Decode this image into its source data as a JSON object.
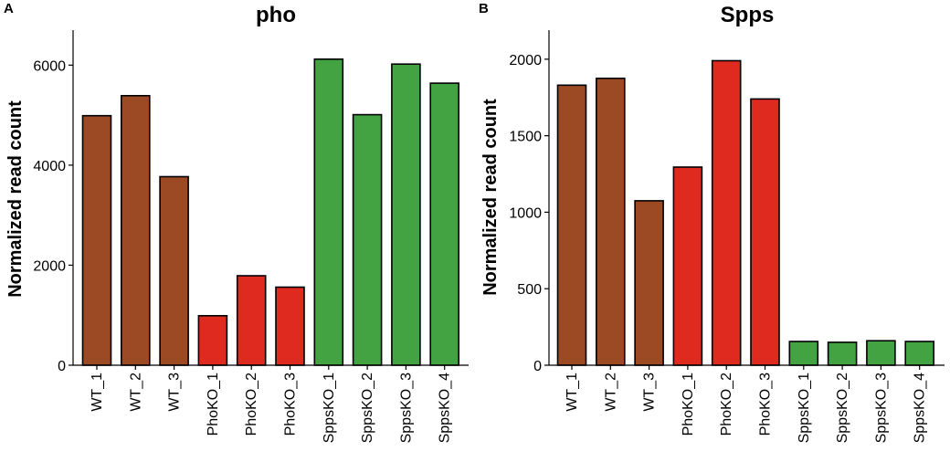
{
  "colors": {
    "WT": "#9b4a24",
    "PhoKO": "#de2a1f",
    "SppsKO": "#43a343",
    "outline": "#000000"
  },
  "chart_data": [
    {
      "panel": "A",
      "type": "bar",
      "title": "pho",
      "xlabel": "",
      "ylabel": "Normalized read count",
      "ylim": [
        0,
        6700
      ],
      "yticks": [
        0,
        2000,
        4000,
        6000
      ],
      "categories": [
        "WT_1",
        "WT_2",
        "WT_3",
        "PhoKO_1",
        "PhoKO_2",
        "PhoKO_3",
        "SppsKO_1",
        "SppsKO_2",
        "SppsKO_3",
        "SppsKO_4"
      ],
      "groups": [
        "WT",
        "WT",
        "WT",
        "PhoKO",
        "PhoKO",
        "PhoKO",
        "SppsKO",
        "SppsKO",
        "SppsKO",
        "SppsKO"
      ],
      "values": [
        4990,
        5390,
        3770,
        990,
        1790,
        1560,
        6120,
        5010,
        6020,
        5640
      ],
      "grid": false,
      "legend": "none"
    },
    {
      "panel": "B",
      "type": "bar",
      "title": "Spps",
      "xlabel": "",
      "ylabel": "Normalized read count",
      "ylim": [
        0,
        2190
      ],
      "yticks": [
        0,
        500,
        1000,
        1500,
        2000
      ],
      "categories": [
        "WT_1",
        "WT_2",
        "WT_3",
        "PhoKO_1",
        "PhoKO_2",
        "PhoKO_3",
        "SppsKO_1",
        "SppsKO_2",
        "SppsKO_3",
        "SppsKO_4"
      ],
      "groups": [
        "WT",
        "WT",
        "WT",
        "PhoKO",
        "PhoKO",
        "PhoKO",
        "SppsKO",
        "SppsKO",
        "SppsKO",
        "SppsKO"
      ],
      "values": [
        1830,
        1875,
        1075,
        1295,
        1990,
        1740,
        155,
        150,
        160,
        155
      ],
      "grid": false,
      "legend": "none"
    }
  ]
}
